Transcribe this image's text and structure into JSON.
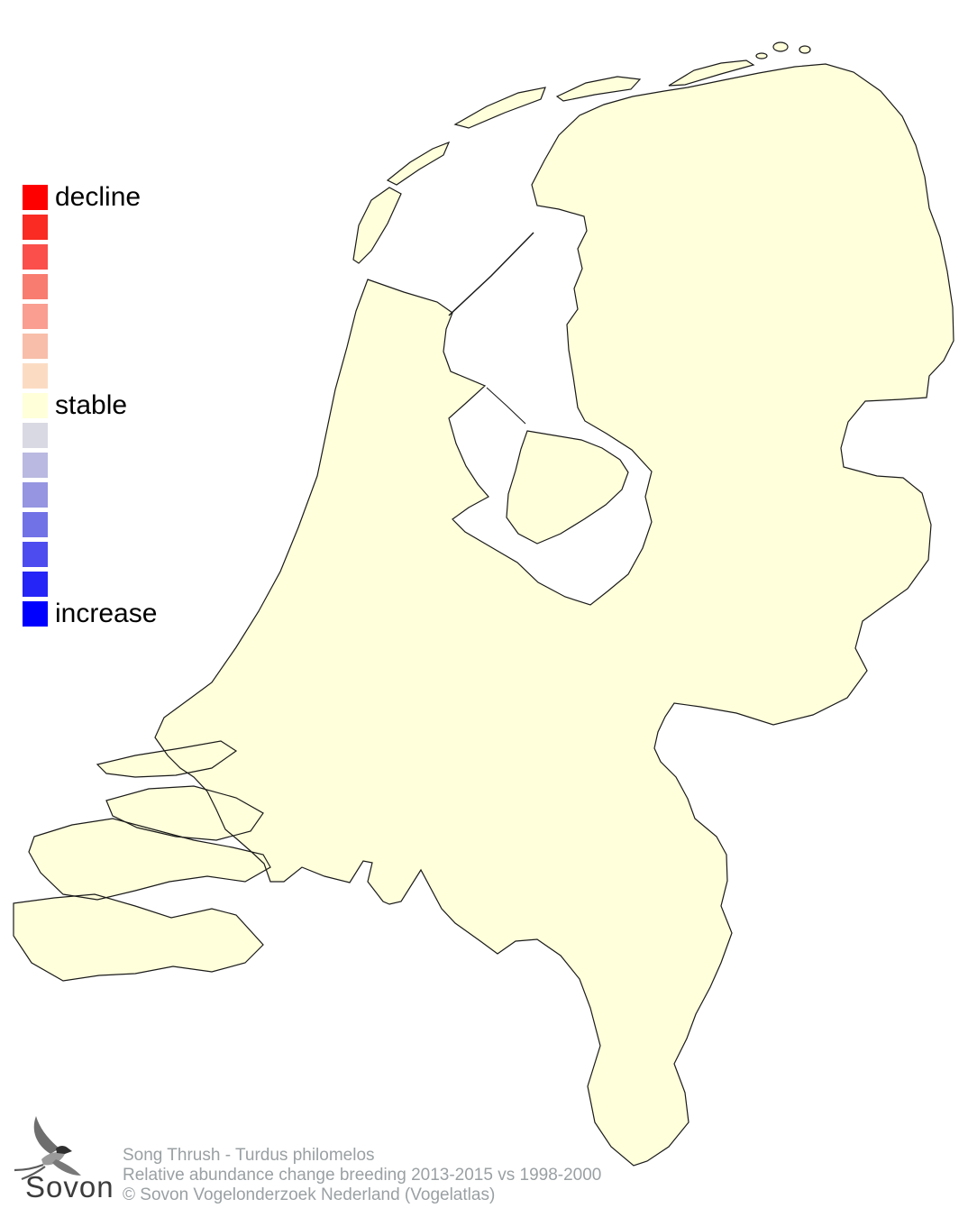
{
  "legend": {
    "labels": {
      "top": "decline",
      "middle": "stable",
      "bottom": "increase"
    },
    "label_rows": {
      "0": "top",
      "7": "middle",
      "14": "bottom"
    },
    "colors": [
      "#FF0000",
      "#F92B23",
      "#FA4F4A",
      "#F87C6F",
      "#F99E90",
      "#F8BEA9",
      "#FBDCC3",
      "#FFFFD9",
      "#D9D9E3",
      "#B9B9E1",
      "#9595E1",
      "#7272E7",
      "#4D4DEF",
      "#2525F7",
      "#0000FF"
    ]
  },
  "caption": {
    "line1": "Song Thrush - Turdus philomelos",
    "line2": "Relative abundance change breeding 2013-2015 vs 1998-2000",
    "line3": "© Sovon Vogelonderzoek Nederland (Vogelatlas)"
  },
  "logo": {
    "text": "Sovon"
  },
  "map": {
    "land_fill": "#FFFFDB",
    "sea_fill": "#FFFFFF",
    "outline_color": "#1a1a1a"
  }
}
